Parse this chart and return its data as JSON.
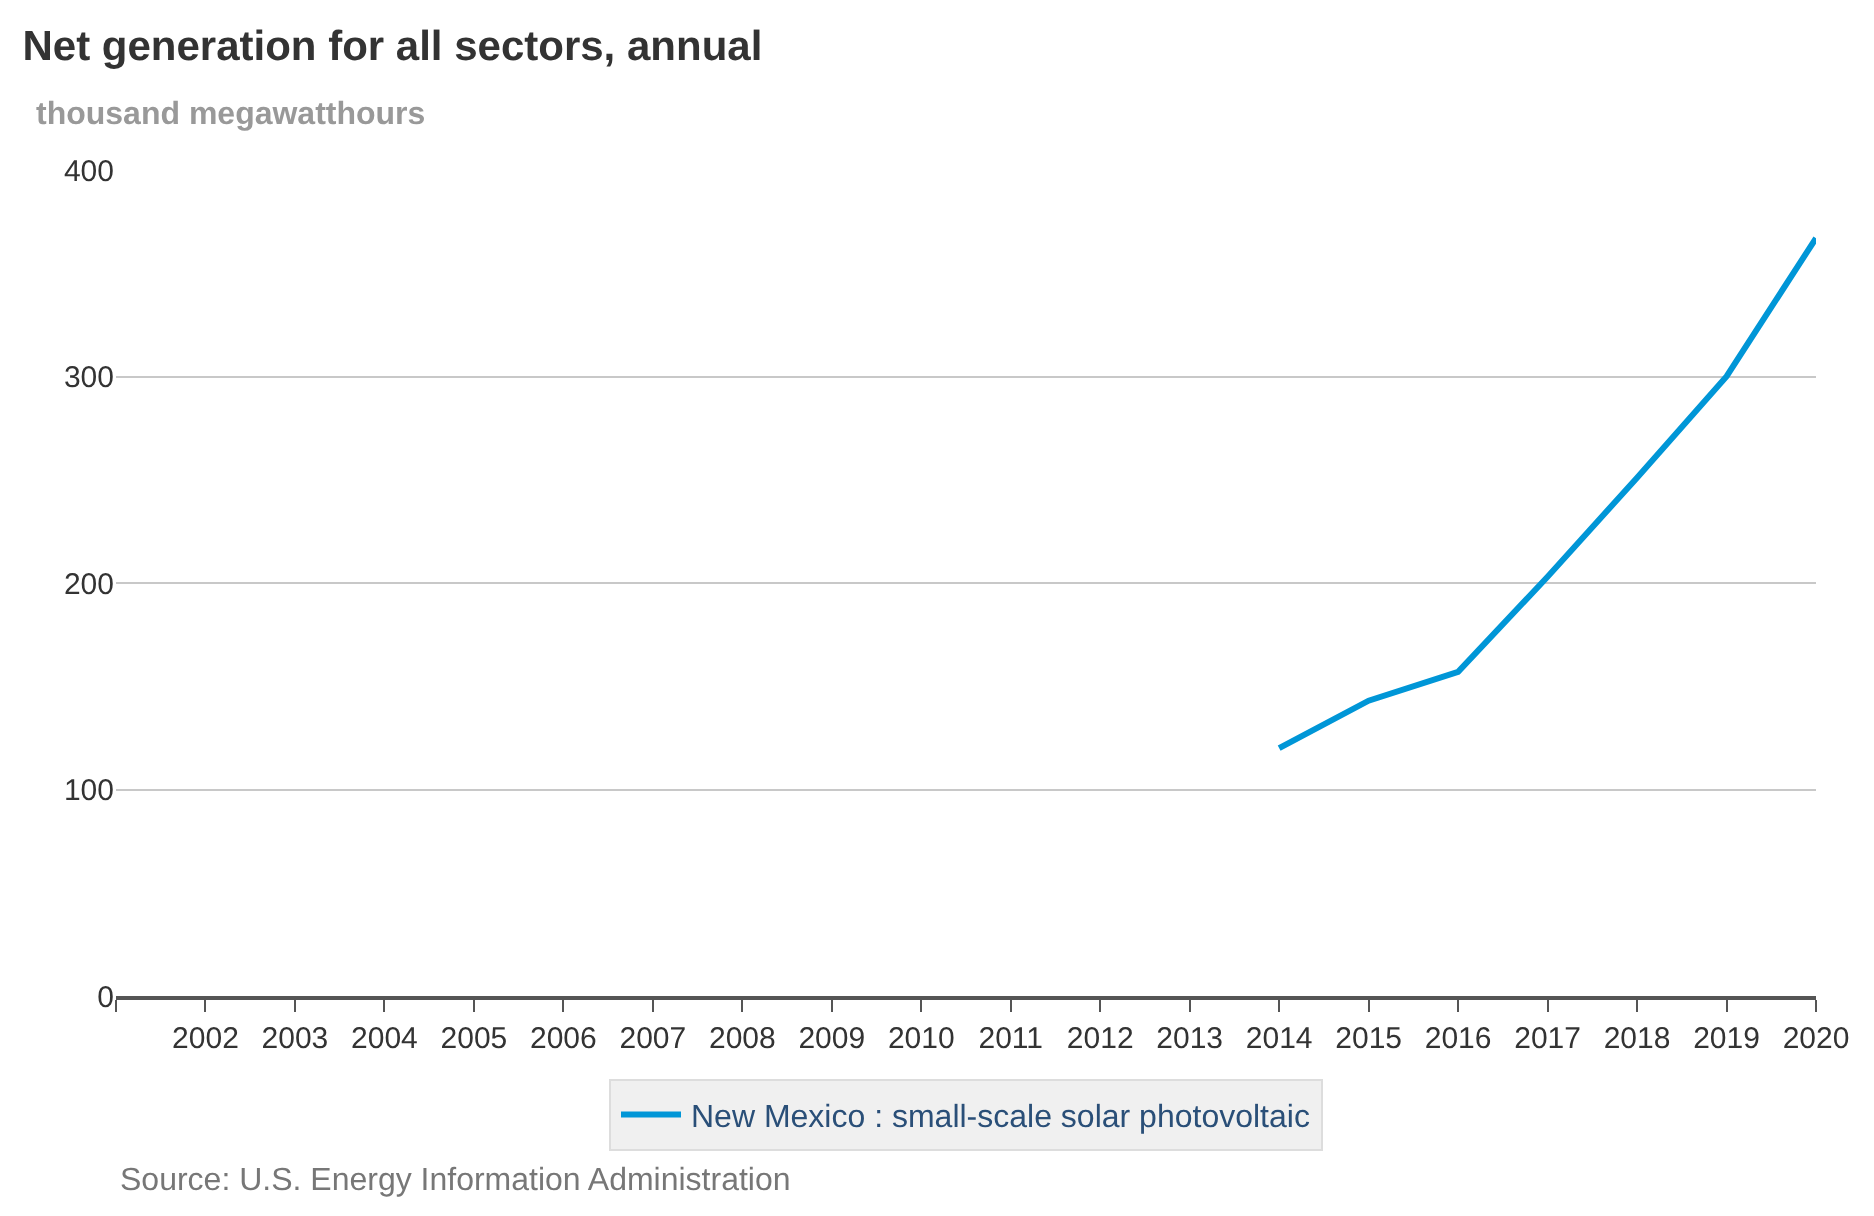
{
  "chart_data": {
    "type": "line",
    "title": "Net generation for all sectors, annual",
    "ylabel": "thousand megawatthours",
    "x": [
      2014,
      2015,
      2016,
      2017,
      2018,
      2019,
      2020
    ],
    "series": [
      {
        "name": "New Mexico : small-scale solar photovoltaic",
        "color": "#0096d7",
        "values": [
          120,
          143,
          157,
          203,
          251,
          300,
          367
        ]
      }
    ],
    "xlim": [
      2001,
      2020
    ],
    "xticks": [
      {
        "value": 2001,
        "label": null
      },
      2002,
      2003,
      2004,
      2005,
      2006,
      2007,
      2008,
      2009,
      2010,
      2011,
      2012,
      2013,
      2014,
      2015,
      2016,
      2017,
      2018,
      2019,
      2020
    ],
    "ylim": [
      0,
      400
    ],
    "yticks": [
      0,
      100,
      200,
      300,
      400
    ],
    "grid": "y",
    "legend": "bottom",
    "marker": "none",
    "line_style": "solid",
    "annotations": [
      "Source: U.S. Energy Information Administration"
    ]
  }
}
